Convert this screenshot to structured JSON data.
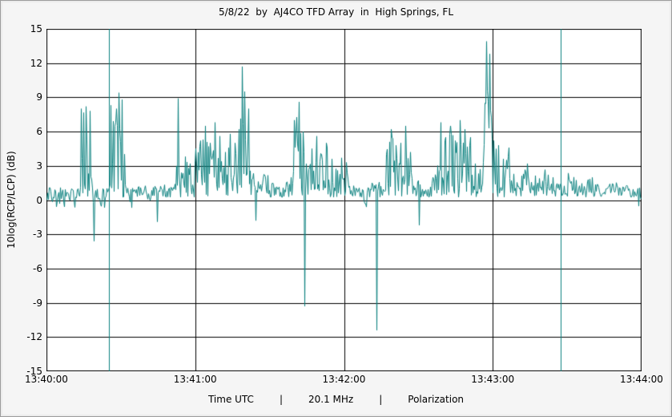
{
  "chart_data": {
    "type": "line",
    "title": "5/8/22  by  AJ4CO TFD Array  in  High Springs, FL",
    "date": "5/8/22",
    "station": "AJ4CO TFD Array",
    "location": "High Springs, FL",
    "xlabel": "Time UTC",
    "ylabel": "10log(RCP/LCP) (dB)",
    "frequency": "20.1 MHz",
    "mode": "Polarization",
    "x_ticks": [
      "13:40:00",
      "13:41:00",
      "13:42:00",
      "13:43:00",
      "13:44:00"
    ],
    "x_range_s": 240,
    "ylim": [
      -15,
      15
    ],
    "y_ticks": [
      15,
      12,
      9,
      6,
      3,
      0,
      -3,
      -6,
      -9,
      -12,
      -15
    ],
    "y_tick_step_db": 3,
    "grid": true,
    "grid_color": "#000000",
    "line_color": "#0c8280",
    "plot_bg": "#ffffff",
    "baseline_db": 0.2,
    "noise_db": 1.0,
    "envelope_samples_t_db": [
      [
        0,
        1.2
      ],
      [
        4,
        1.0
      ],
      [
        8,
        1.3
      ],
      [
        12,
        1.1
      ],
      [
        13.5,
        2.0
      ],
      [
        14,
        8.0
      ],
      [
        16,
        8.2
      ],
      [
        17.5,
        7.8
      ],
      [
        18.5,
        1.2
      ],
      [
        21,
        1.0
      ],
      [
        24,
        1.1
      ],
      [
        25.5,
        2.0
      ],
      [
        26,
        8.3
      ],
      [
        28,
        8.0
      ],
      [
        29,
        9.4
      ],
      [
        30.5,
        8.8
      ],
      [
        32,
        1.4
      ],
      [
        35,
        1.1
      ],
      [
        38,
        1.5
      ],
      [
        41,
        1.2
      ],
      [
        44,
        1.4
      ],
      [
        47,
        1.7
      ],
      [
        50,
        1.3
      ],
      [
        52,
        2.0
      ],
      [
        53,
        8.9
      ],
      [
        54.5,
        1.8
      ],
      [
        56,
        3.8
      ],
      [
        58,
        3.2
      ],
      [
        60,
        4.5
      ],
      [
        62,
        5.2
      ],
      [
        64,
        6.5
      ],
      [
        66,
        5.0
      ],
      [
        68,
        6.8
      ],
      [
        70,
        5.6
      ],
      [
        72,
        4.2
      ],
      [
        74,
        5.8
      ],
      [
        76,
        5.0
      ],
      [
        77.5,
        6.2
      ],
      [
        79,
        11.7
      ],
      [
        80,
        9.5
      ],
      [
        81.5,
        8.0
      ],
      [
        83.5,
        2.5
      ],
      [
        86,
        1.5
      ],
      [
        88,
        2.8
      ],
      [
        90,
        3.0
      ],
      [
        92,
        1.4
      ],
      [
        95,
        1.3
      ],
      [
        98,
        2.4
      ],
      [
        100,
        7.0
      ],
      [
        102,
        8.6
      ],
      [
        103.5,
        6.0
      ],
      [
        105,
        3.0
      ],
      [
        107,
        4.5
      ],
      [
        109,
        5.6
      ],
      [
        111,
        4.0
      ],
      [
        113,
        5.0
      ],
      [
        115,
        3.6
      ],
      [
        117,
        3.0
      ],
      [
        119,
        3.7
      ],
      [
        121,
        3.3
      ],
      [
        123,
        2.2
      ],
      [
        126,
        1.4
      ],
      [
        129,
        1.1
      ],
      [
        131.5,
        2.3
      ],
      [
        134,
        1.6
      ],
      [
        137,
        4.0
      ],
      [
        139,
        6.2
      ],
      [
        141,
        4.8
      ],
      [
        143,
        5.0
      ],
      [
        145,
        6.5
      ],
      [
        147,
        4.2
      ],
      [
        149,
        2.2
      ],
      [
        151,
        1.3
      ],
      [
        154,
        1.6
      ],
      [
        157,
        2.6
      ],
      [
        159,
        6.8
      ],
      [
        161,
        5.5
      ],
      [
        163,
        6.5
      ],
      [
        165,
        5.2
      ],
      [
        167,
        7.0
      ],
      [
        169,
        6.2
      ],
      [
        171,
        5.5
      ],
      [
        173,
        3.2
      ],
      [
        175.5,
        2.6
      ],
      [
        177.5,
        13.9
      ],
      [
        179,
        12.8
      ],
      [
        180.5,
        5.2
      ],
      [
        182.5,
        4.8
      ],
      [
        184.5,
        3.6
      ],
      [
        186.5,
        4.6
      ],
      [
        188.5,
        3.0
      ],
      [
        191,
        2.2
      ],
      [
        194,
        3.2
      ],
      [
        197,
        2.1
      ],
      [
        200,
        3.0
      ],
      [
        203,
        2.4
      ],
      [
        206,
        1.9
      ],
      [
        209,
        2.1
      ],
      [
        212,
        2.7
      ],
      [
        215,
        1.7
      ],
      [
        218,
        2.3
      ],
      [
        221,
        1.9
      ],
      [
        224,
        1.5
      ],
      [
        227,
        2.1
      ],
      [
        230,
        1.6
      ],
      [
        233,
        1.3
      ],
      [
        236,
        1.5
      ],
      [
        240,
        1.1
      ]
    ],
    "down_spikes_t_db": [
      [
        19,
        -3.6
      ],
      [
        44.5,
        -1.9
      ],
      [
        84.5,
        -1.8
      ],
      [
        104.3,
        -9.3
      ],
      [
        133.4,
        -11.4
      ],
      [
        150.5,
        -2.2
      ]
    ],
    "offscale_lines_t": [
      25.2,
      207.7
    ]
  },
  "footer": {
    "separator": "|"
  }
}
